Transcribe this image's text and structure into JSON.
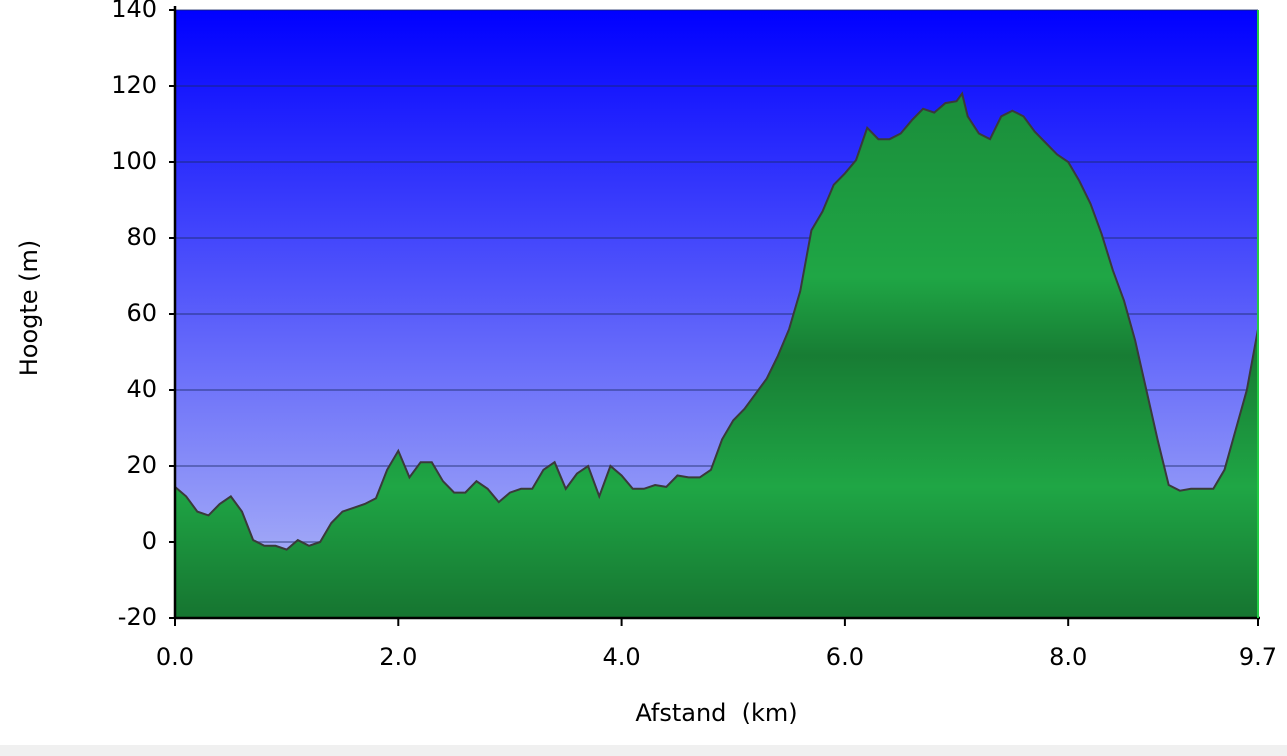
{
  "chart_data": {
    "type": "area",
    "x_label": "Afstand  (km)",
    "y_label": "Hoogte (m)",
    "xlim": [
      0,
      9.7
    ],
    "ylim": [
      -20,
      140
    ],
    "xticks": [
      {
        "value": 0,
        "label": "0.0"
      },
      {
        "value": 2,
        "label": "2.0"
      },
      {
        "value": 4,
        "label": "4.0"
      },
      {
        "value": 6,
        "label": "6.0"
      },
      {
        "value": 8,
        "label": "8.0"
      },
      9.7
    ],
    "yticks": [
      -20,
      0,
      20,
      40,
      60,
      80,
      100,
      120,
      140
    ],
    "grid": true,
    "color": "#1fa645",
    "x": [
      0,
      0.1,
      0.2,
      0.3,
      0.4,
      0.5,
      0.6,
      0.7,
      0.8,
      0.9,
      1.0,
      1.1,
      1.2,
      1.3,
      1.4,
      1.5,
      1.6,
      1.7,
      1.8,
      1.9,
      2.0,
      2.1,
      2.2,
      2.3,
      2.4,
      2.5,
      2.6,
      2.7,
      2.8,
      2.9,
      3.0,
      3.1,
      3.2,
      3.3,
      3.4,
      3.5,
      3.6,
      3.7,
      3.8,
      3.9,
      4.0,
      4.1,
      4.2,
      4.3,
      4.4,
      4.5,
      4.6,
      4.7,
      4.8,
      4.9,
      5.0,
      5.1,
      5.2,
      5.3,
      5.4,
      5.5,
      5.6,
      5.7,
      5.8,
      5.9,
      6.0,
      6.1,
      6.2,
      6.3,
      6.4,
      6.5,
      6.6,
      6.7,
      6.8,
      6.9,
      7.0,
      7.05,
      7.1,
      7.2,
      7.3,
      7.4,
      7.5,
      7.6,
      7.7,
      7.8,
      7.9,
      8.0,
      8.1,
      8.2,
      8.3,
      8.4,
      8.5,
      8.6,
      8.7,
      8.8,
      8.9,
      9.0,
      9.1,
      9.2,
      9.3,
      9.4,
      9.5,
      9.6,
      9.7
    ],
    "values": [
      14.5,
      12,
      8,
      7,
      10,
      12,
      8,
      0.5,
      -1,
      -1,
      -2,
      0.5,
      -1,
      0,
      5,
      8,
      9,
      10,
      11.5,
      19,
      24,
      17,
      21,
      21,
      16,
      13,
      13,
      16,
      14,
      10.5,
      13,
      14,
      14,
      19,
      21,
      14,
      18,
      20,
      12,
      20,
      17.5,
      14,
      14,
      15,
      14.5,
      17.5,
      17,
      17,
      19,
      27,
      32,
      35,
      39,
      43,
      49,
      56,
      66,
      82,
      87,
      94,
      97,
      100.5,
      109,
      106,
      106,
      107.5,
      111,
      114,
      113,
      115.5,
      116,
      118,
      112,
      107.5,
      106,
      112,
      113.5,
      112,
      108,
      105,
      102,
      100,
      95,
      89,
      81,
      71.5,
      63.5,
      53,
      40,
      27,
      15,
      13.5,
      14,
      14,
      14,
      19,
      29.5,
      40,
      56
    ]
  }
}
